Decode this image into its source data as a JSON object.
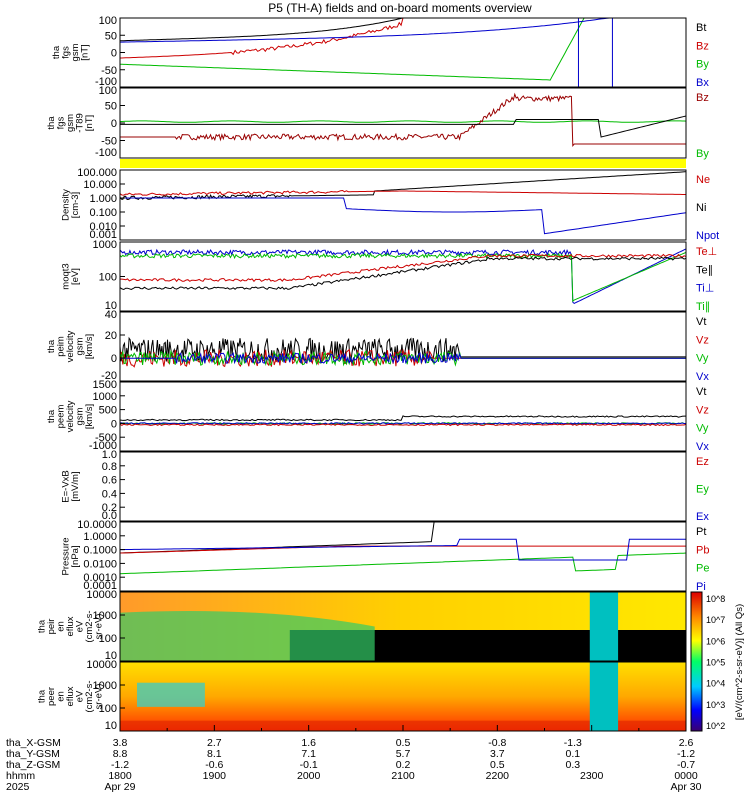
{
  "chart_data": {
    "type": "line",
    "title": "P5 (TH-A) fields and on-board moments overview",
    "x_axis": {
      "tick_count": 10,
      "rows": [
        {
          "label": "tha_X-GSM",
          "values": [
            "3.8",
            "2.7",
            "1.6",
            "0.5",
            "-0.8",
            "-1.3",
            "2.6"
          ],
          "positions": [
            0,
            2,
            4,
            6,
            8,
            9.6,
            12
          ]
        },
        {
          "label": "tha_Y-GSM",
          "values": [
            "8.8",
            "8.1",
            "7.1",
            "5.7",
            "3.7",
            "0.1",
            "-1.2"
          ],
          "positions": [
            0,
            2,
            4,
            6,
            8,
            9.6,
            12
          ]
        },
        {
          "label": "tha_Z-GSM",
          "values": [
            "-1.2",
            "-0.6",
            "-0.1",
            "0.2",
            "0.5",
            "0.3",
            "-0.7"
          ],
          "positions": [
            0,
            2,
            4,
            6,
            8,
            9.6,
            12
          ]
        },
        {
          "label": "hhmm",
          "values": [
            "1800",
            "1900",
            "2000",
            "2100",
            "2200",
            "2300",
            "0000"
          ],
          "positions": [
            0,
            2,
            4,
            6,
            8,
            10,
            12
          ]
        },
        {
          "label": "2025",
          "values": [
            "Apr 29",
            "",
            "",
            "",
            "",
            "",
            "Apr 30"
          ],
          "positions": [
            0,
            2,
            4,
            6,
            8,
            10,
            12
          ]
        }
      ]
    },
    "panels": [
      {
        "name": "fgs",
        "ylabel": [
          "tha",
          "fgs",
          "gsm",
          "[nT]"
        ],
        "ylim": [
          -100,
          100
        ],
        "yticks": [
          "100",
          "50",
          "0",
          "-50",
          "-100"
        ],
        "legend": [
          {
            "name": "Bt",
            "color": "#000000"
          },
          {
            "name": "Bz",
            "color": "#cc0000"
          },
          {
            "name": "By",
            "color": "#00bb00"
          },
          {
            "name": "Bx",
            "color": "#0000cc"
          }
        ]
      },
      {
        "name": "fgs-t89",
        "ylabel": [
          "tha",
          "fgs",
          "gsm",
          "-T89",
          "[nT]"
        ],
        "ylim": [
          -130,
          130
        ],
        "yticks": [
          "100",
          "50",
          "0",
          "-50",
          "-100"
        ],
        "legend": [
          {
            "name": "Bz",
            "color": "#990000"
          },
          {
            "name": "By",
            "color": "#00bb00"
          }
        ]
      },
      {
        "name": "density",
        "ylabel": [
          "Density",
          "[cm-3]"
        ],
        "yscale": "log",
        "yticks": [
          "100.000",
          "10.000",
          "1.000",
          "0.100",
          "0.010",
          "0.001"
        ],
        "legend": [
          {
            "name": "Ne",
            "color": "#cc0000"
          },
          {
            "name": "Ni",
            "color": "#000000"
          },
          {
            "name": "Npot",
            "color": "#0000cc"
          }
        ]
      },
      {
        "name": "temperature",
        "ylabel": [
          "moqt3",
          "[eV]"
        ],
        "yscale": "log",
        "yticks": [
          "1000",
          "100",
          "10"
        ],
        "legend": [
          {
            "name": "Te⊥",
            "color": "#cc0000"
          },
          {
            "name": "Te∥",
            "color": "#000000"
          },
          {
            "name": "Ti⊥",
            "color": "#0000cc"
          },
          {
            "name": "Ti∥",
            "color": "#00bb00"
          }
        ]
      },
      {
        "name": "peim-velocity",
        "ylabel": [
          "tha",
          "peim",
          "velocity",
          "gsm",
          "[km/s]"
        ],
        "ylim": [
          -20,
          40
        ],
        "yticks": [
          "40",
          "20",
          "0",
          "-20"
        ],
        "legend": [
          {
            "name": "Vt",
            "color": "#000000"
          },
          {
            "name": "Vz",
            "color": "#cc0000"
          },
          {
            "name": "Vy",
            "color": "#00bb00"
          },
          {
            "name": "Vx",
            "color": "#0000cc"
          }
        ]
      },
      {
        "name": "peem-velocity",
        "ylabel": [
          "tha",
          "peem",
          "velocity",
          "gsm",
          "[km/s]"
        ],
        "ylim": [
          -1200,
          1700
        ],
        "yticks": [
          "1500",
          "1000",
          "500",
          "0",
          "-500",
          "-1000"
        ],
        "legend": [
          {
            "name": "Vt",
            "color": "#000000"
          },
          {
            "name": "Vz",
            "color": "#cc0000"
          },
          {
            "name": "Vy",
            "color": "#00bb00"
          },
          {
            "name": "Vx",
            "color": "#0000cc"
          }
        ]
      },
      {
        "name": "efield",
        "ylabel": [
          "E=-VxB",
          "[mV/m]"
        ],
        "ylim": [
          0,
          1
        ],
        "yticks": [
          "1.0",
          "0.8",
          "0.6",
          "0.4",
          "0.2",
          "0.0"
        ],
        "legend": [
          {
            "name": "Ez",
            "color": "#cc0000"
          },
          {
            "name": "Ey",
            "color": "#00bb00"
          },
          {
            "name": "Ex",
            "color": "#0000cc"
          }
        ]
      },
      {
        "name": "pressure",
        "ylabel": [
          "Pressure",
          "[nPa]"
        ],
        "yscale": "log",
        "yticks": [
          "10.0000",
          "1.0000",
          "0.1000",
          "0.0100",
          "0.0010",
          "0.0001"
        ],
        "legend": [
          {
            "name": "Pt",
            "color": "#000000"
          },
          {
            "name": "Pb",
            "color": "#cc0000"
          },
          {
            "name": "Pe",
            "color": "#00bb00"
          },
          {
            "name": "Pi",
            "color": "#0000cc"
          }
        ]
      },
      {
        "name": "peir-spectrogram",
        "type": "heatmap",
        "ylabel": [
          "tha",
          "peir",
          "en",
          "eflux",
          "eV",
          "(cm2-s-",
          "sr-eV)"
        ],
        "yscale": "log",
        "yticks": [
          "10000",
          "1000",
          "100",
          "10"
        ]
      },
      {
        "name": "peer-spectrogram",
        "type": "heatmap",
        "ylabel": [
          "tha",
          "peer",
          "en",
          "eflux",
          "eV",
          "(cm2-s-",
          "sr-eV)"
        ],
        "yscale": "log",
        "yticks": [
          "10000",
          "1000",
          "100",
          "10"
        ]
      }
    ],
    "colorbar": {
      "label": "[eV/(cm^2-s-sr-eV)] (All Qs)",
      "ticks": [
        "10^8",
        "10^7",
        "10^6",
        "10^5",
        "10^4",
        "10^3",
        "10^2"
      ]
    }
  },
  "colors": {
    "black": "#000000",
    "red": "#cc0000",
    "green": "#00bb00",
    "blue": "#0000cc",
    "darkred": "#990000",
    "yellow": "#ffff00"
  }
}
